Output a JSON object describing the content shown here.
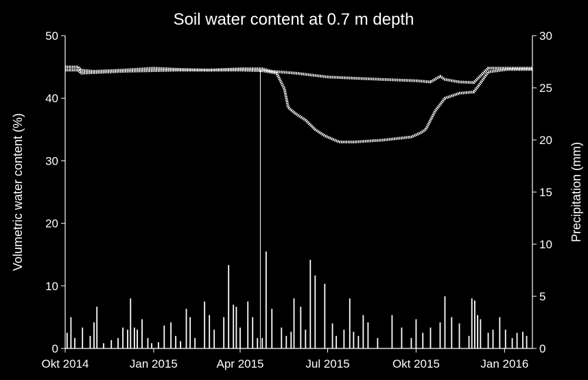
{
  "chart_data": {
    "type": "line",
    "title": "Soil water content at 0.7 m depth",
    "ylabel": "Volumetric water content (%)",
    "y2label": "Precipitation (mm)",
    "xlabel": "",
    "ylim": [
      0,
      50
    ],
    "y2lim": [
      0,
      30
    ],
    "yticks": [
      "0",
      "10",
      "20",
      "30",
      "40",
      "50"
    ],
    "y2ticks": [
      "0",
      "5",
      "10",
      "15",
      "20",
      "25",
      "30"
    ],
    "xticks": [
      "Okt 2014",
      "Jan 2015",
      "Apr 2015",
      "Jul 2015",
      "Okt 2015",
      "Jan 2016"
    ],
    "x_range_days": [
      0,
      486
    ],
    "x_tick_days": [
      0,
      92,
      182,
      273,
      365,
      457
    ],
    "grid": false,
    "legend": "none",
    "colors": {
      "background": "#000000",
      "foreground": "#ffffff"
    },
    "series": [
      {
        "axis": "left",
        "x": [
          0,
          14,
          16,
          30,
          60,
          92,
          120,
          150,
          182,
          205,
          215,
          240,
          273,
          300,
          330,
          365,
          380,
          390,
          395,
          410,
          425,
          440,
          460,
          486
        ],
        "values": [
          45.0,
          45.0,
          44.5,
          44.3,
          44.5,
          44.8,
          44.6,
          44.5,
          44.7,
          44.7,
          44.3,
          44.0,
          43.4,
          43.2,
          43.0,
          42.8,
          42.6,
          43.5,
          43.0,
          42.6,
          42.5,
          44.8,
          44.8,
          44.8
        ]
      },
      {
        "axis": "left",
        "x": [
          0,
          14,
          16,
          60,
          120,
          182,
          205,
          220,
          228,
          232,
          240,
          250,
          260,
          270,
          285,
          300,
          330,
          360,
          370,
          375,
          385,
          395,
          410,
          425,
          430,
          440,
          460,
          486
        ],
        "values": [
          44.5,
          44.5,
          44.0,
          44.3,
          44.5,
          44.5,
          44.4,
          44.0,
          41.5,
          38.5,
          37.5,
          36.5,
          35.0,
          34.0,
          33.0,
          33.0,
          33.3,
          33.8,
          34.5,
          35.0,
          38.0,
          40.0,
          40.8,
          41.0,
          42.0,
          44.2,
          44.6,
          44.6
        ]
      },
      {
        "axis": "right",
        "type": "bar",
        "name": "",
        "x": [
          2,
          6,
          10,
          18,
          26,
          30,
          33,
          40,
          48,
          55,
          60,
          65,
          68,
          72,
          75,
          80,
          86,
          90,
          97,
          103,
          110,
          115,
          120,
          126,
          130,
          135,
          145,
          150,
          155,
          165,
          170,
          175,
          178,
          182,
          190,
          195,
          200,
          205,
          209,
          215,
          225,
          230,
          235,
          238,
          245,
          250,
          255,
          260,
          270,
          278,
          282,
          290,
          296,
          300,
          305,
          310,
          315,
          325,
          340,
          350,
          360,
          365,
          372,
          380,
          390,
          395,
          402,
          410,
          420,
          423,
          426,
          429,
          432,
          440,
          445,
          452,
          458,
          465,
          470,
          476,
          480
        ],
        "values": [
          1.5,
          3.0,
          1.0,
          2.0,
          1.2,
          2.5,
          4.0,
          0.5,
          0.8,
          1.0,
          2.0,
          1.8,
          4.8,
          2.0,
          1.8,
          2.8,
          1.0,
          0.5,
          0.6,
          2.2,
          2.5,
          1.2,
          0.7,
          3.8,
          3.0,
          1.0,
          4.5,
          3.2,
          1.8,
          3.0,
          8.0,
          4.2,
          4.0,
          2.0,
          4.5,
          3.0,
          1.0,
          1.0,
          9.3,
          3.8,
          2.0,
          1.2,
          1.6,
          4.8,
          4.0,
          1.8,
          8.5,
          7.0,
          6.2,
          2.4,
          1.2,
          1.8,
          4.8,
          1.6,
          1.2,
          3.2,
          2.5,
          1.0,
          3.2,
          2.0,
          1.0,
          2.8,
          1.5,
          2.0,
          2.5,
          5.0,
          3.0,
          2.4,
          1.2,
          4.8,
          4.6,
          3.2,
          2.8,
          1.5,
          1.8,
          3.0,
          1.8,
          1.0,
          1.5,
          1.6,
          1.2
        ]
      }
    ]
  }
}
